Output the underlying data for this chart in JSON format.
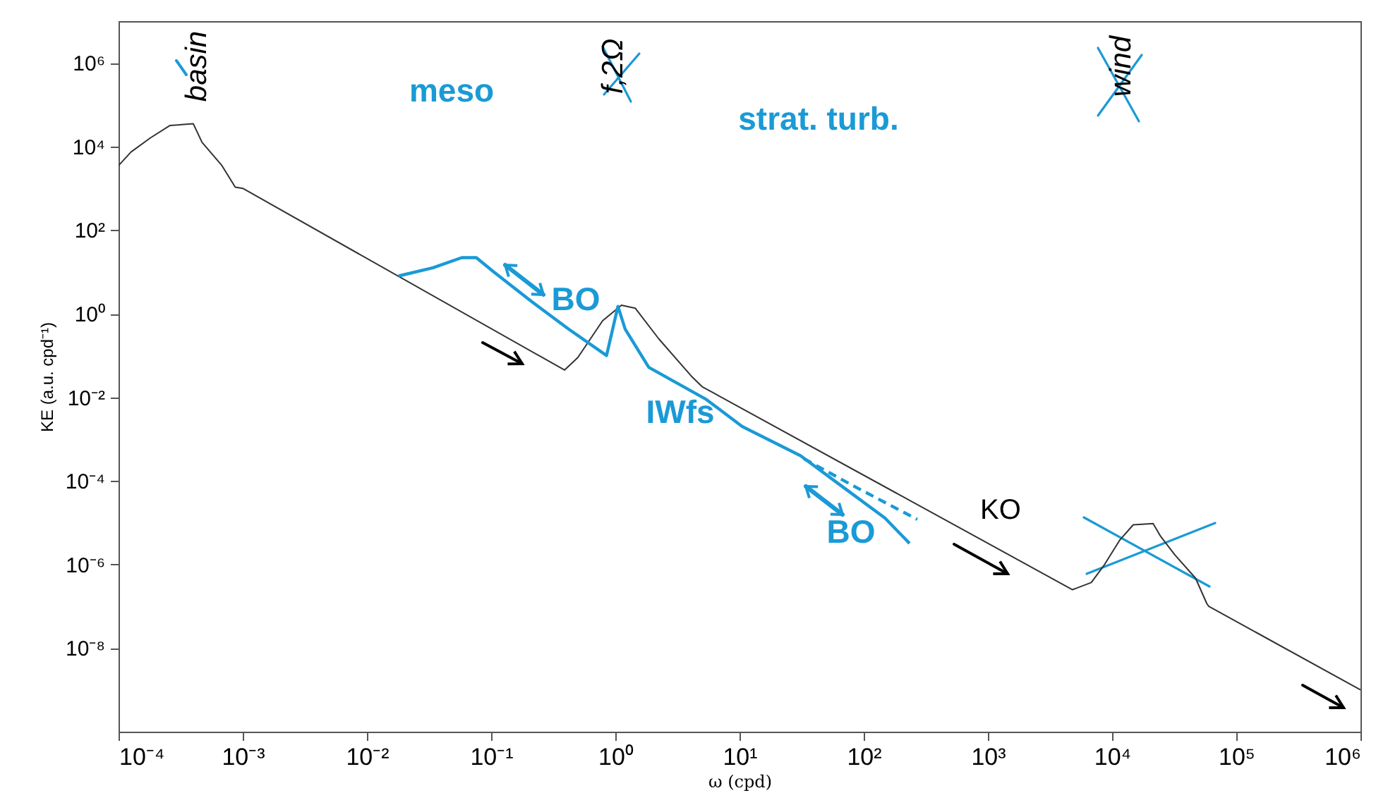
{
  "chart_data": {
    "type": "line",
    "xlabel": "ω (cpd)",
    "ylabel": "KE (a.u. cpd⁻¹)",
    "log": "xy",
    "xlim": [
      0.0001,
      1000000
    ],
    "ylim": [
      1e-10,
      10000000.0
    ],
    "xticks": [
      {
        "value": 0.0001,
        "label": "10⁻⁴"
      },
      {
        "value": 0.001,
        "label": "10⁻³"
      },
      {
        "value": 0.01,
        "label": "10⁻²"
      },
      {
        "value": 0.1,
        "label": "10⁻¹"
      },
      {
        "value": 1,
        "label": "10⁰"
      },
      {
        "value": 10,
        "label": "10¹"
      },
      {
        "value": 100,
        "label": "10²"
      },
      {
        "value": 1000,
        "label": "10³"
      },
      {
        "value": 10000,
        "label": "10⁴"
      },
      {
        "value": 100000,
        "label": "10⁵"
      },
      {
        "value": 1000000,
        "label": "10⁶"
      }
    ],
    "yticks": [
      {
        "value": 1e-08,
        "label": "10⁻⁸"
      },
      {
        "value": 1e-06,
        "label": "10⁻⁶"
      },
      {
        "value": 0.0001,
        "label": "10⁻⁴"
      },
      {
        "value": 0.01,
        "label": "10⁻²"
      },
      {
        "value": 1,
        "label": "10⁰"
      },
      {
        "value": 100,
        "label": "10²"
      },
      {
        "value": 10000,
        "label": "10⁴"
      },
      {
        "value": 1000000,
        "label": "10⁶"
      }
    ],
    "series": [
      {
        "color": "#333333",
        "line_style": "solid",
        "x": [
          0.0001,
          0.000126,
          0.00018,
          0.00026,
          0.0004,
          0.00047,
          0.00068,
          0.00087,
          0.001,
          0.39,
          0.5,
          0.79,
          1.12,
          1.45,
          2.24,
          4.1,
          5,
          4800,
          6800,
          8700,
          11500,
          14800,
          21400,
          24500,
          32000,
          47000,
          58000,
          60000,
          1000000
        ],
        "values": [
          3500,
          7400,
          16000,
          32000,
          35000,
          12600,
          3500,
          1070,
          1000,
          0.045,
          0.09,
          0.68,
          1.6,
          1.35,
          0.25,
          0.032,
          0.018,
          2.5e-07,
          3.7e-07,
          1e-06,
          3.8e-06,
          8.9e-06,
          9.5e-06,
          4.8e-06,
          1.7e-06,
          4.7e-07,
          1.15e-07,
          1e-07,
          1e-09
        ]
      },
      {
        "color": "#1a9ad6",
        "line_style": "solid",
        "x": [
          0.018,
          0.034,
          0.058,
          0.076,
          0.105,
          0.21,
          0.42,
          0.85,
          1.05,
          1.2,
          1.86,
          5.4,
          10.5,
          31,
          72,
          148,
          234
        ],
        "values": [
          8,
          12.6,
          22,
          22,
          10,
          2,
          0.43,
          0.1,
          1.5,
          0.43,
          0.052,
          0.0089,
          0.002,
          0.0004,
          6.3e-05,
          1.3e-05,
          3.2e-06
        ]
      },
      {
        "color": "#1a9ad6",
        "line_style": "dashed",
        "x": [
          33,
          80,
          270
        ],
        "values": [
          0.00034,
          8e-05,
          1.2e-05
        ]
      }
    ],
    "annotations": [
      "basin",
      "meso",
      "f,2Ω",
      "strat. turb.",
      "wind",
      "BO",
      "IWfs",
      "BO",
      "KO"
    ]
  }
}
